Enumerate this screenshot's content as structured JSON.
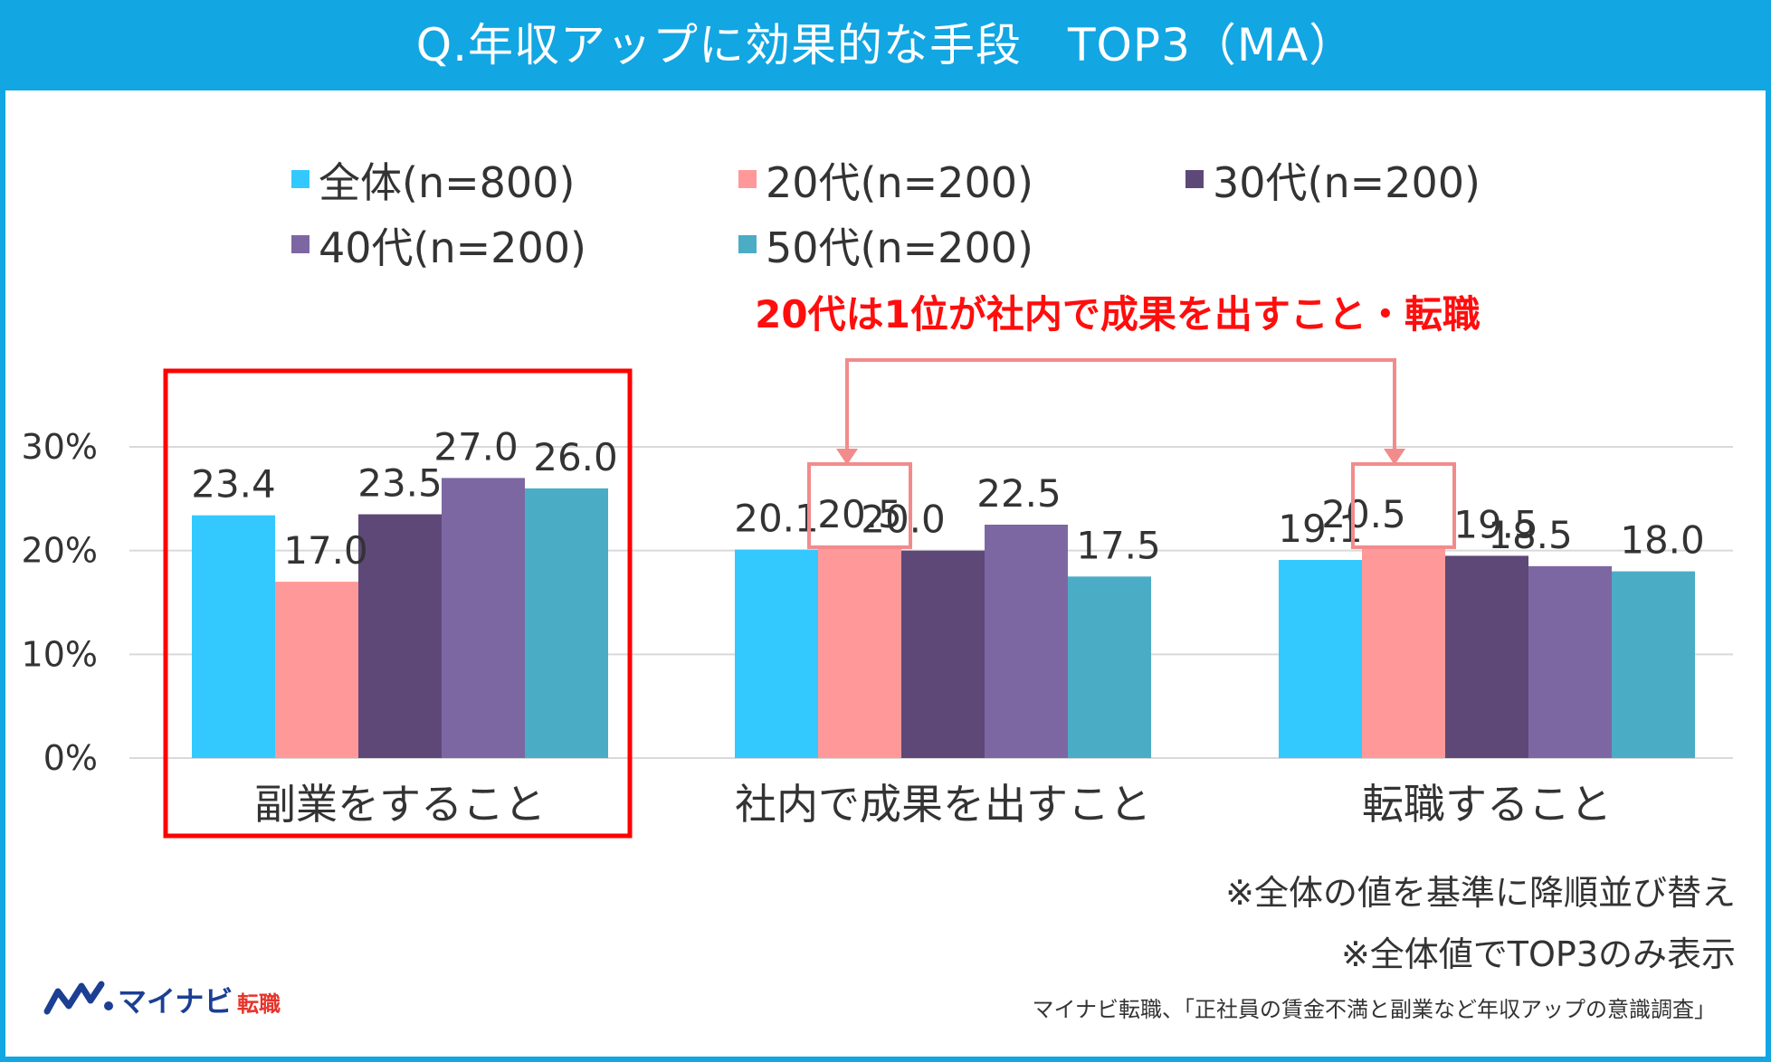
{
  "header": {
    "title": "Q.年収アップに効果的な手段　TOP3（MA）"
  },
  "chart_data": {
    "type": "bar",
    "title": "Q.年収アップに効果的な手段　TOP3（MA）",
    "categories": [
      "副業をすること",
      "社内で成果を出すこと",
      "転職すること"
    ],
    "series": [
      {
        "name": "全体(n=800)",
        "color": "#33c9ff",
        "values": [
          23.4,
          20.1,
          19.1
        ]
      },
      {
        "name": "20代(n=200)",
        "color": "#ff9999",
        "values": [
          17.0,
          20.5,
          20.5
        ]
      },
      {
        "name": "30代(n=200)",
        "color": "#5e4878",
        "values": [
          23.5,
          20.0,
          19.5
        ]
      },
      {
        "name": "40代(n=200)",
        "color": "#7d67a3",
        "values": [
          27.0,
          22.5,
          18.5
        ]
      },
      {
        "name": "50代(n=200)",
        "color": "#4bacc6",
        "values": [
          26.0,
          17.5,
          18.0
        ]
      }
    ],
    "value_labels": [
      [
        "23.4",
        "20.1",
        "19.1"
      ],
      [
        "17.0",
        "20.5",
        "20.5"
      ],
      [
        "23.5",
        "20.0",
        "19.5"
      ],
      [
        "27.0",
        "22.5",
        "18.5"
      ],
      [
        "26.0",
        "17.5",
        "18.0"
      ]
    ],
    "y_ticks": [
      "0%",
      "10%",
      "20%",
      "30%"
    ],
    "ylim": [
      0,
      30
    ],
    "grid": true,
    "legend": "top",
    "xlabel": "",
    "ylabel": ""
  },
  "annotations": {
    "callout": "20代は1位が社内で成果を出すこと・転職",
    "highlight_category": "副業をすること",
    "notes": [
      "※全体の値を基準に降順並び替え",
      "※全体値でTOP3のみ表示"
    ],
    "source": "マイナビ転職、「正社員の賃金不満と副業など年収アップの意識調査」"
  },
  "logo": {
    "main": "マイナビ",
    "sub": "転職"
  },
  "colors": {
    "header": "#12a6e2",
    "callout": "#ff0d0d",
    "callout_box": "#f28b8b",
    "highlight_box": "#ff0000",
    "grid": "#d9d9d9"
  }
}
